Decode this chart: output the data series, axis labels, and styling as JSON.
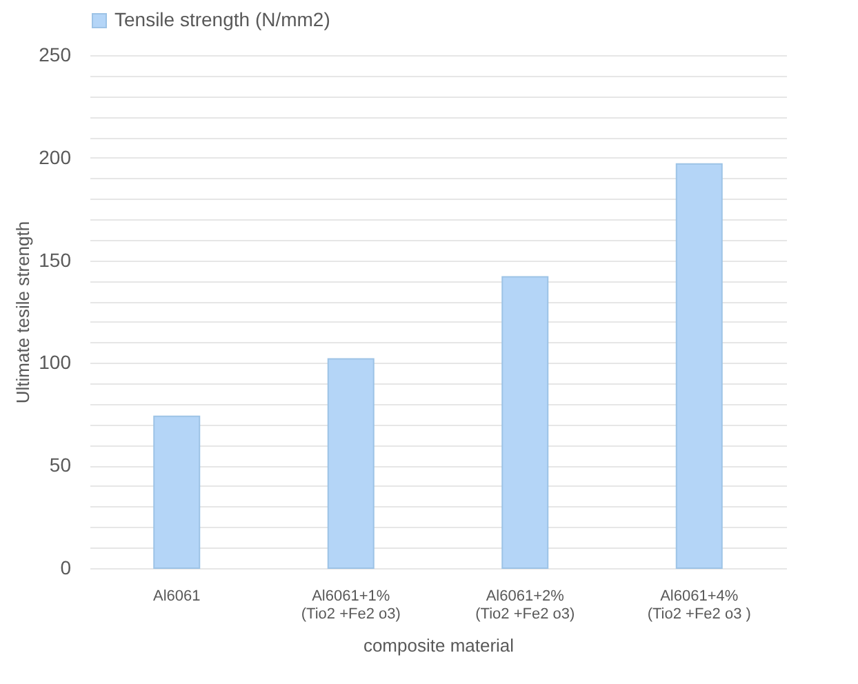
{
  "chart_data": {
    "type": "bar",
    "categories": [
      "Al6061",
      "Al6061+1%(Tio2 +Fe2 o3)",
      "Al6061+2%(Tio2 +Fe2 o3)",
      "Al6061+4%(Tio2 +Fe2 o3 )"
    ],
    "series": [
      {
        "name": "Tensile strength (N/mm2)",
        "color": "#b4d5f7",
        "values": [
          74,
          102,
          142,
          197
        ]
      }
    ],
    "xlabel": "composite material",
    "ylabel": "Ultimate tesile strength",
    "ylim": [
      0,
      250
    ],
    "yticks": [
      0,
      {
        "value": 10,
        "label": null
      },
      {
        "value": 20,
        "label": null
      },
      {
        "value": 30,
        "label": null
      },
      {
        "value": 40,
        "label": null
      },
      50,
      {
        "value": 60,
        "label": null
      },
      {
        "value": 70,
        "label": null
      },
      {
        "value": 80,
        "label": null
      },
      {
        "value": 90,
        "label": null
      },
      100,
      {
        "value": 110,
        "label": null
      },
      {
        "value": 120,
        "label": null
      },
      {
        "value": 130,
        "label": null
      },
      {
        "value": 140,
        "label": null
      },
      150,
      {
        "value": 160,
        "label": null
      },
      {
        "value": 170,
        "label": null
      },
      {
        "value": 180,
        "label": null
      },
      {
        "value": 190,
        "label": null
      },
      200,
      {
        "value": 210,
        "label": null
      },
      {
        "value": 220,
        "label": null
      },
      {
        "value": 230,
        "label": null
      },
      {
        "value": 240,
        "label": null
      },
      250
    ],
    "grid": "y",
    "legend": "top"
  }
}
